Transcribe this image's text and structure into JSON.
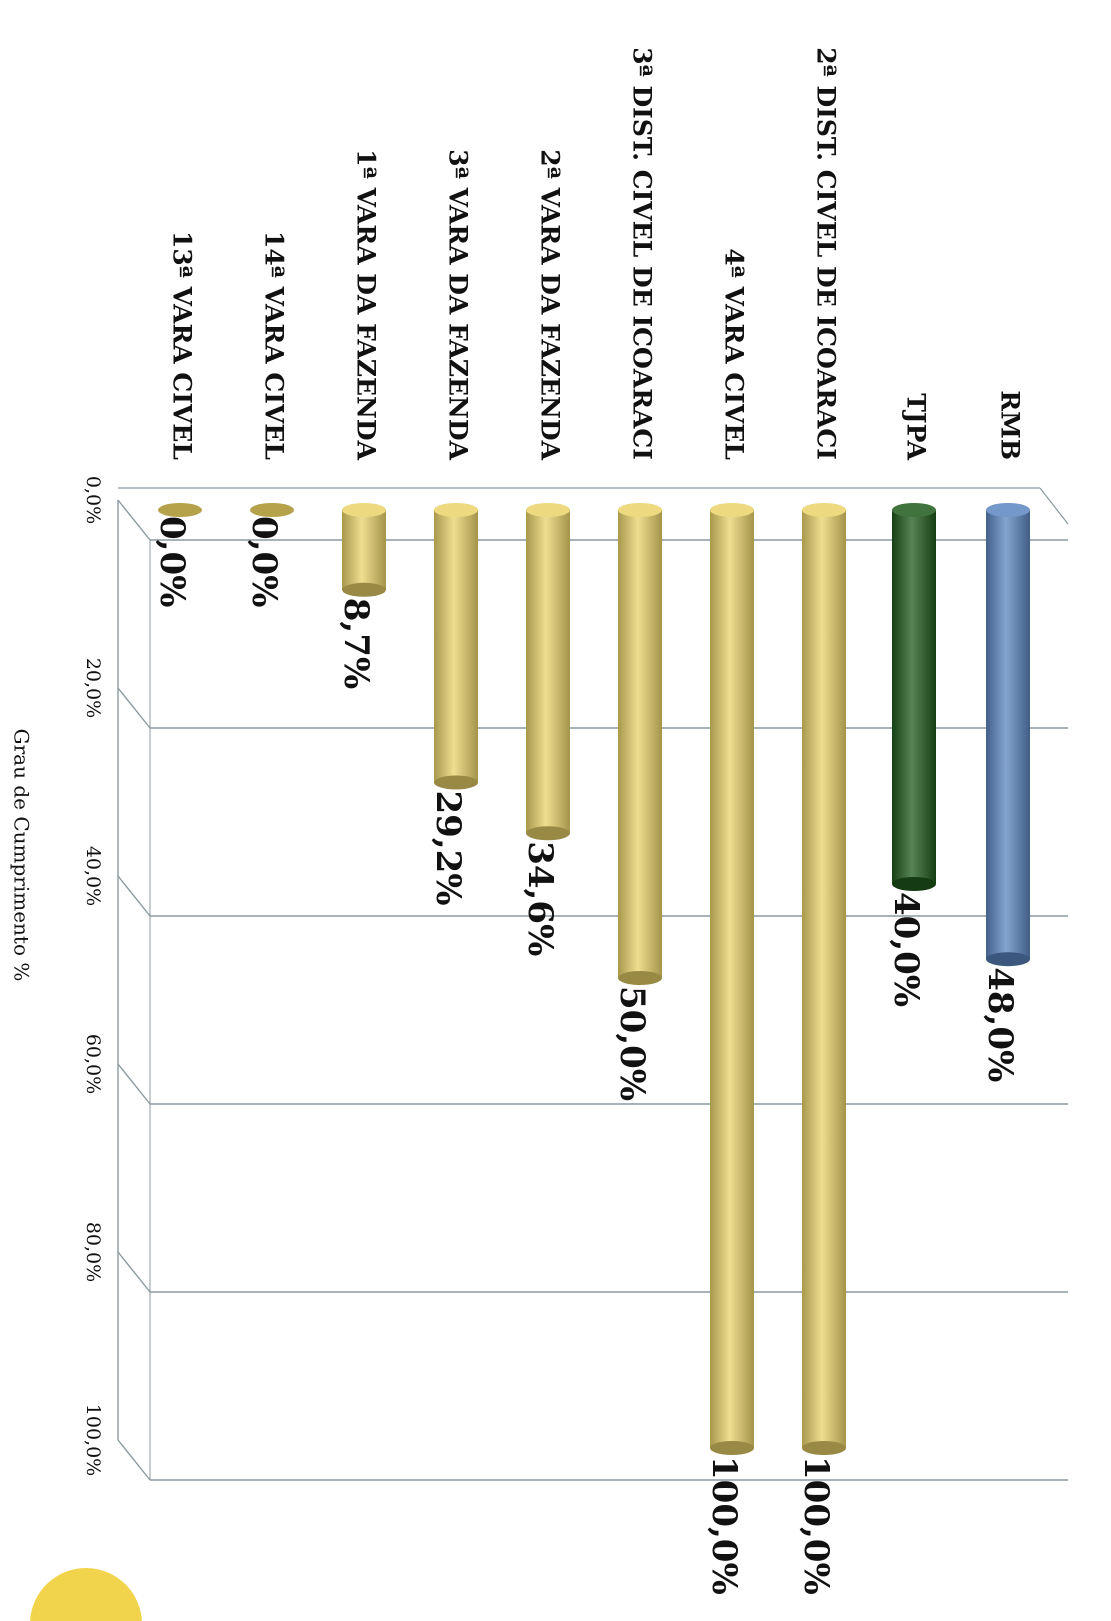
{
  "chart_data": {
    "type": "bar",
    "orientation": "horizontal",
    "rendering": "3d-cylinder",
    "categories": [
      "RMB",
      "TJPA",
      "2ª DIST. CIVEL DE ICOARACI",
      "4ª VARA CIVEL",
      "3ª DIST. CIVEL DE ICOARACI",
      "2ª VARA DA FAZENDA",
      "3ª VARA DA FAZENDA",
      "1ª VARA DA FAZENDA",
      "14ª VARA CIVEL",
      "13ª VARA CIVEL"
    ],
    "values": [
      48.0,
      40.0,
      100.0,
      100.0,
      50.0,
      34.6,
      29.2,
      8.7,
      0.0,
      0.0
    ],
    "value_labels": [
      "48,0%",
      "40,0%",
      "100,0%",
      "100,0%",
      "50,0%",
      "34,6%",
      "29,2%",
      "8,7%",
      "0,0%",
      "0,0%"
    ],
    "bar_colors": [
      "#5b86c0",
      "#1f5a1c",
      "#ead36a",
      "#ead36a",
      "#ead36a",
      "#ead36a",
      "#ead36a",
      "#ead36a",
      "#b6a24a",
      "#b6a24a"
    ],
    "ylabel": "Grau de Cumprimento %",
    "ylim": [
      0,
      100
    ],
    "ticks": [
      0,
      20,
      40,
      60,
      80,
      100
    ],
    "tick_labels": [
      "0,0%",
      "20,0%",
      "40,0%",
      "60,0%",
      "80,0%",
      "100,0%"
    ],
    "grid": true,
    "legend": "none"
  },
  "colors": {
    "grid": "#8c9aa0",
    "text": "#111111",
    "decorative_circle": "#f2d44c"
  }
}
